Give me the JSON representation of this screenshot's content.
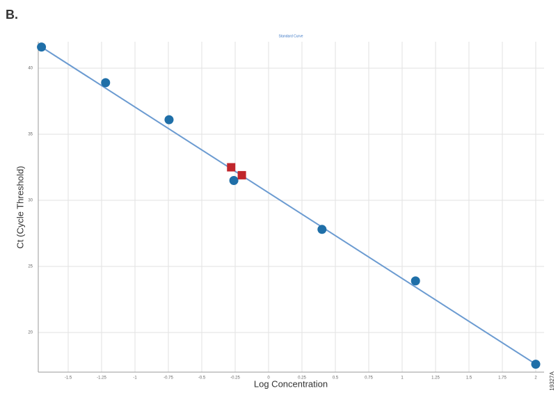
{
  "chart_data": {
    "type": "scatter",
    "panel_label": "B.",
    "title": "Standard Curve",
    "x_label": "Log Concentration",
    "y_label": "Ct (Cycle Threshold)",
    "figure_id": "19327A",
    "xlim": [
      -1.724,
      2.0625
    ],
    "ylim": [
      17.0,
      42.0
    ],
    "xticks": [
      -1.5,
      -1.25,
      -1.0,
      -0.75,
      -0.5,
      -0.25,
      0.0,
      0.25,
      0.5,
      0.75,
      1.0,
      1.25,
      1.5,
      1.75,
      2.0
    ],
    "yticks": [
      20,
      25,
      30,
      35,
      40
    ],
    "grid": true,
    "series": [
      {
        "color": "#1f6fa8",
        "marker": "circle",
        "x": [
          -1.7,
          -1.22,
          -0.745,
          -0.26,
          0.4,
          1.1,
          2.0
        ],
        "values": [
          41.6,
          38.9,
          36.1,
          31.5,
          27.8,
          23.9,
          17.6
        ]
      },
      {
        "color": "#c0262c",
        "marker": "square",
        "x": [
          -0.28,
          -0.2
        ],
        "values": [
          32.5,
          31.9
        ]
      }
    ],
    "fit_line": {
      "color": "#6b9bd1",
      "x": [
        -1.7,
        2.0
      ],
      "values": [
        41.6,
        17.6
      ]
    }
  }
}
